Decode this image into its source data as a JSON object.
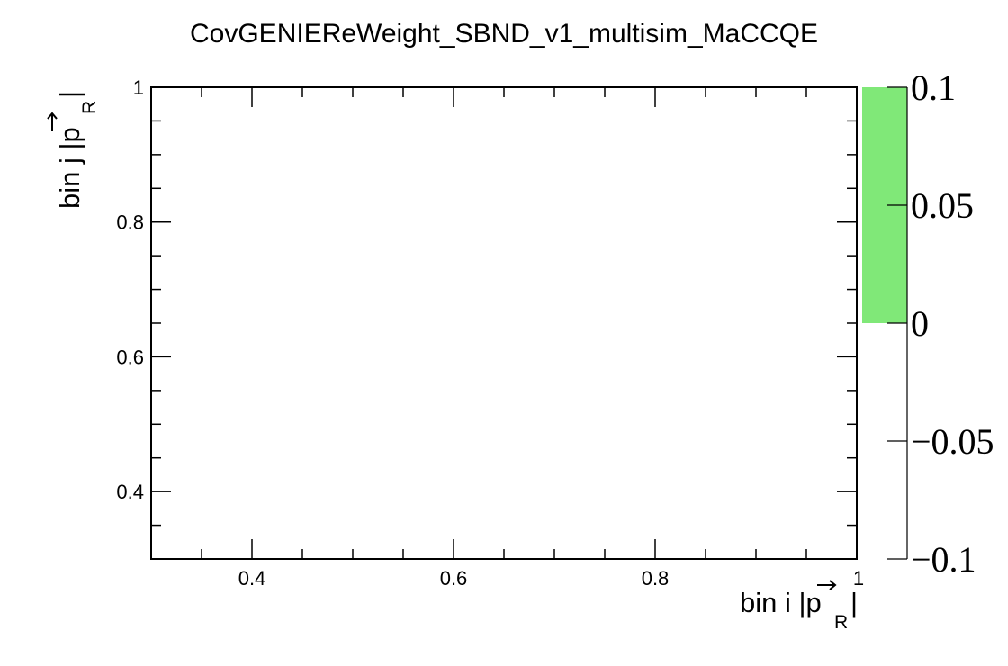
{
  "chart_data": {
    "type": "heatmap",
    "title": "CovGENIEReWeight_SBND_v1_multisim_MaCCQE",
    "xlabel": {
      "prefix": "bin i |",
      "vec": "p",
      "sub": "R",
      "suffix": "|"
    },
    "ylabel": {
      "prefix": "bin j |",
      "vec": "p",
      "sub": "R",
      "suffix": "|"
    },
    "xlim": [
      0.3,
      1.0
    ],
    "ylim": [
      0.3,
      1.0
    ],
    "x_ticks": [
      "0.4",
      "0.6",
      "0.8",
      "1"
    ],
    "y_ticks": [
      "0.4",
      "0.6",
      "0.8",
      "1"
    ],
    "cells": [],
    "colorbar": {
      "range": [
        -0.1,
        0.1
      ],
      "ticks": [
        "0.1",
        "0.05",
        "0",
        "−0.05",
        "−0.1"
      ],
      "filled_range": [
        0.0,
        0.1
      ],
      "fill_color": "#80e878"
    },
    "grid": false,
    "legend": "none"
  }
}
